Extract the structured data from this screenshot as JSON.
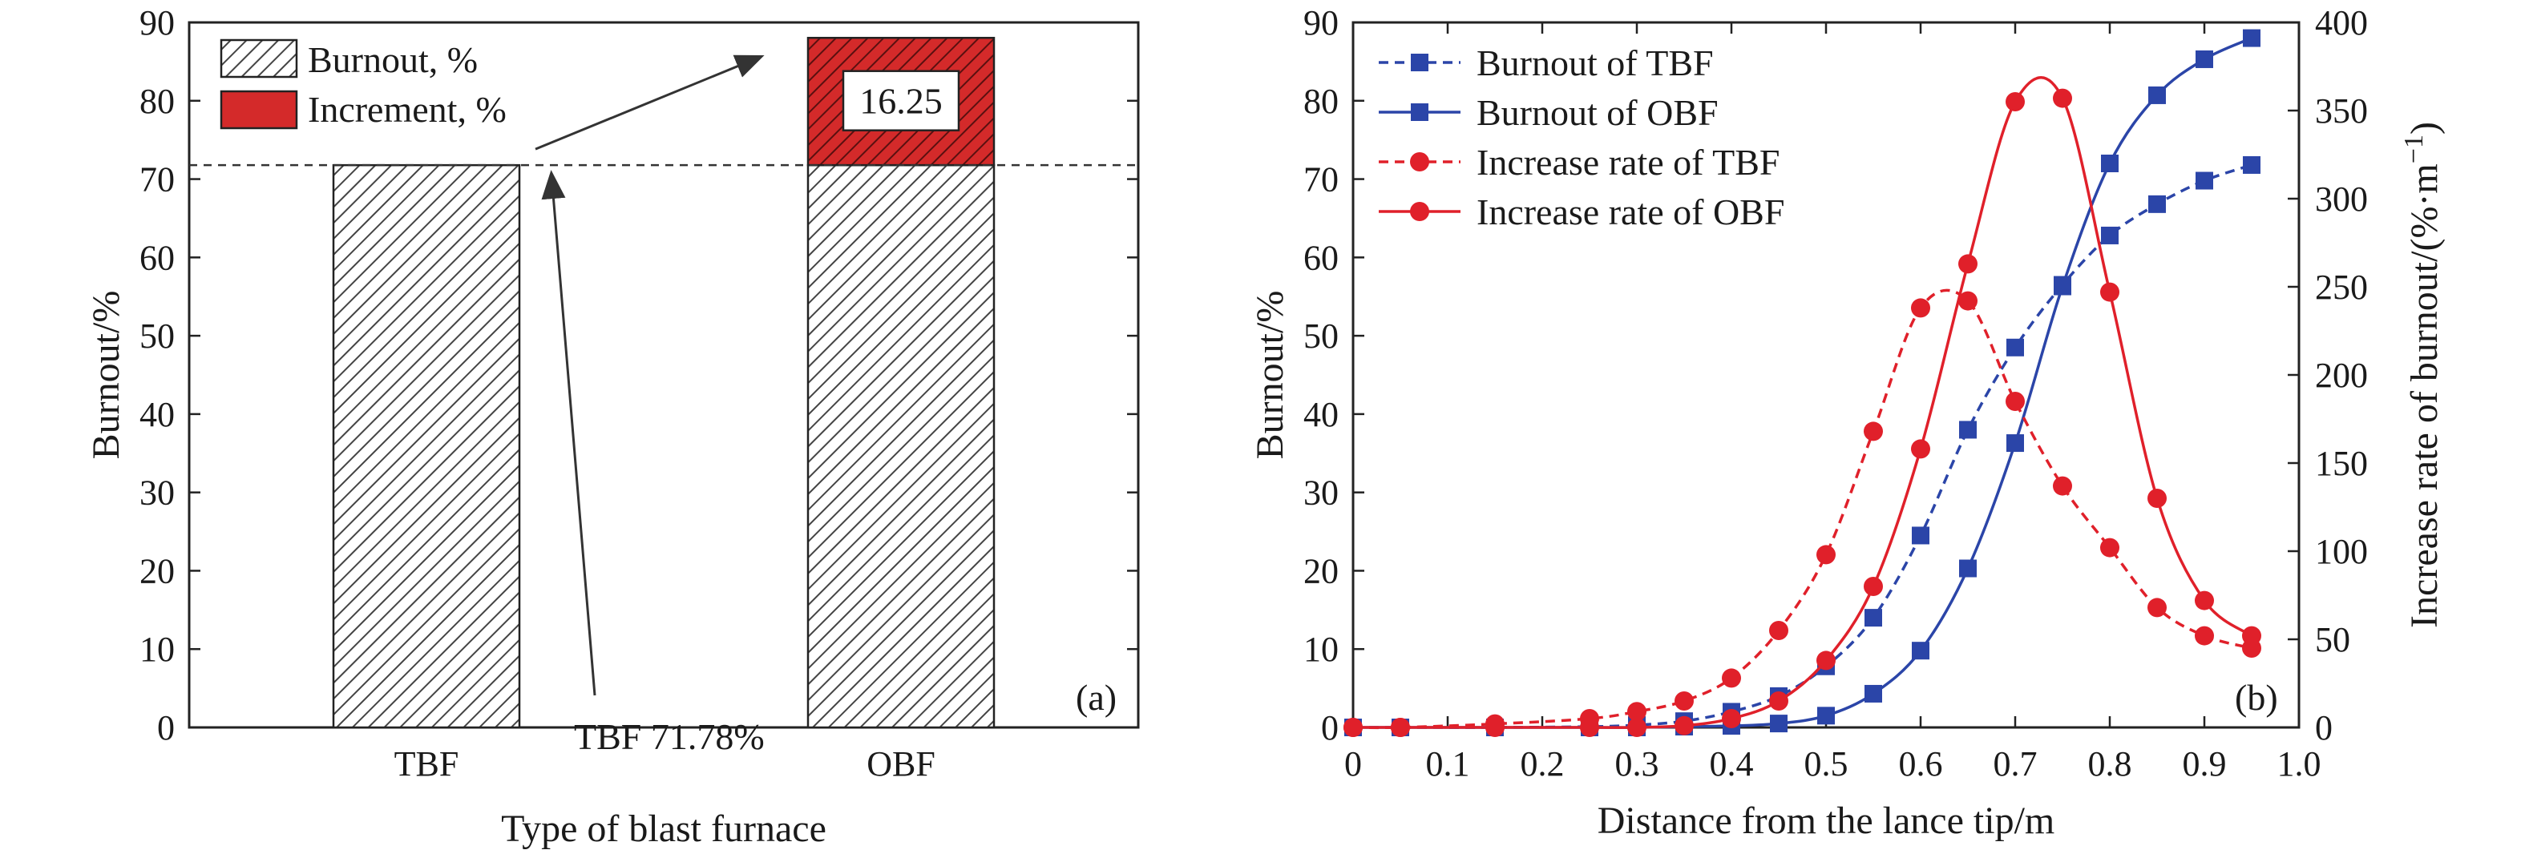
{
  "chart_data": [
    {
      "panel": "(a)",
      "type": "bar",
      "xlabel": "Type of blast furnace",
      "ylabel": "Burnout/%",
      "ylim": [
        0,
        90
      ],
      "yticks": [
        0,
        10,
        20,
        30,
        40,
        50,
        60,
        70,
        80,
        90
      ],
      "categories": [
        "TBF",
        "OBF"
      ],
      "stacked": true,
      "series": [
        {
          "name": "Burnout, %",
          "values": [
            71.78,
            71.78
          ],
          "fill": "hatched",
          "color": "#ffffff"
        },
        {
          "name": "Increment, %",
          "values": [
            0,
            16.25
          ],
          "fill": "hatched",
          "color": "#d42a2a"
        }
      ],
      "increment_label": "16.25",
      "reference_line": {
        "value": 71.78,
        "label": "TBF 71.78%",
        "style": "dashed"
      },
      "legend_position": "top-left"
    },
    {
      "panel": "(b)",
      "type": "line",
      "xlabel": "Distance from the lance tip/m",
      "ylabel": "Burnout/%",
      "y2label": "Increase rate of burnout/(%·m",
      "y2label_sup": "−1",
      "y2label_end": ")",
      "xlim": [
        0,
        1.0
      ],
      "ylim": [
        0,
        90
      ],
      "y2lim": [
        0,
        400
      ],
      "xticks": [
        "0",
        "0.1",
        "0.2",
        "0.3",
        "0.4",
        "0.5",
        "0.6",
        "0.7",
        "0.8",
        "0.9",
        "1.0"
      ],
      "yticks": [
        0,
        10,
        20,
        30,
        40,
        50,
        60,
        70,
        80,
        90
      ],
      "y2ticks": [
        0,
        50,
        100,
        150,
        200,
        250,
        300,
        350,
        400
      ],
      "legend_position": "top-left",
      "series": [
        {
          "name": "Burnout of TBF",
          "axis": "left",
          "color": "#2b45a8",
          "marker": "square",
          "dash": true,
          "x": [
            0,
            0.05,
            0.15,
            0.25,
            0.3,
            0.35,
            0.4,
            0.45,
            0.5,
            0.55,
            0.6,
            0.65,
            0.7,
            0.75,
            0.8,
            0.85,
            0.9,
            0.95
          ],
          "y": [
            0,
            0,
            0,
            0.1,
            0.3,
            0.8,
            2.0,
            4.0,
            7.8,
            14.0,
            24.5,
            38.0,
            48.5,
            56.5,
            62.8,
            66.8,
            69.8,
            71.8
          ]
        },
        {
          "name": "Burnout of OBF",
          "axis": "left",
          "color": "#2b45a8",
          "marker": "square",
          "dash": false,
          "x": [
            0,
            0.05,
            0.15,
            0.25,
            0.3,
            0.35,
            0.4,
            0.45,
            0.5,
            0.55,
            0.6,
            0.65,
            0.7,
            0.75,
            0.8,
            0.85,
            0.9,
            0.95
          ],
          "y": [
            0,
            0,
            0,
            0,
            0,
            0.1,
            0.2,
            0.5,
            1.5,
            4.3,
            9.8,
            20.3,
            36.3,
            56.3,
            72.0,
            80.7,
            85.3,
            88.0
          ]
        },
        {
          "name": "Increase rate of TBF",
          "axis": "right",
          "color": "#e0202a",
          "marker": "circle",
          "dash": true,
          "x": [
            0,
            0.05,
            0.15,
            0.25,
            0.3,
            0.35,
            0.4,
            0.45,
            0.5,
            0.55,
            0.6,
            0.65,
            0.7,
            0.75,
            0.8,
            0.85,
            0.9,
            0.95
          ],
          "y": [
            0,
            0,
            2,
            5,
            9,
            15,
            28,
            55,
            98,
            168,
            238,
            242,
            185,
            137,
            102,
            68,
            52,
            45
          ]
        },
        {
          "name": "Increase rate of OBF",
          "axis": "right",
          "color": "#e0202a",
          "marker": "circle",
          "dash": false,
          "x": [
            0,
            0.05,
            0.15,
            0.25,
            0.3,
            0.35,
            0.4,
            0.45,
            0.5,
            0.55,
            0.6,
            0.65,
            0.7,
            0.75,
            0.8,
            0.85,
            0.9,
            0.95
          ],
          "y": [
            0,
            0,
            0,
            0,
            0,
            1,
            5,
            15,
            38,
            80,
            158,
            263,
            355,
            357,
            247,
            130,
            72,
            52
          ]
        }
      ]
    }
  ]
}
